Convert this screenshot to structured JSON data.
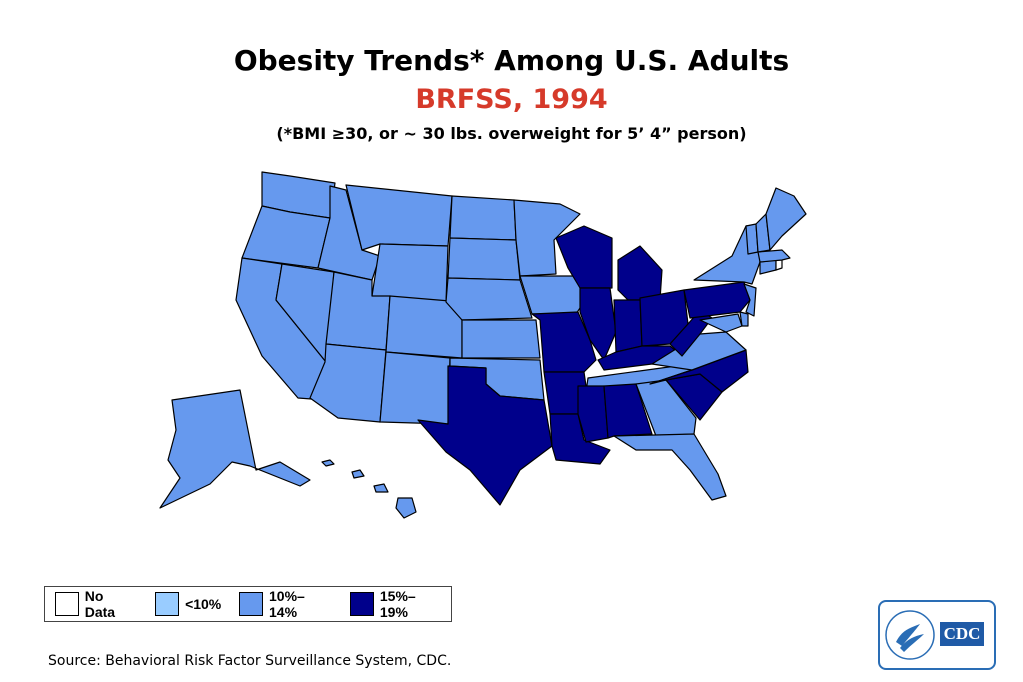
{
  "title": "Obesity Trends* Among U.S. Adults",
  "subtitle": "BRFSS, 1994",
  "note": "(*BMI ≥30, or ~ 30 lbs. overweight for 5’ 4” person)",
  "legend": [
    {
      "label": "No Data",
      "color": "#ffffff"
    },
    {
      "label": "<10%",
      "color": "#99ccff"
    },
    {
      "label": "10%–14%",
      "color": "#6699ee"
    },
    {
      "label": "15%–19%",
      "color": "#00008b"
    }
  ],
  "colors": {
    "low": "#6699ee",
    "high": "#00008b",
    "title_accent": "#d63a2a"
  },
  "states": [
    {
      "name": "Washington",
      "cat": "10%–14%"
    },
    {
      "name": "Oregon",
      "cat": "10%–14%"
    },
    {
      "name": "California",
      "cat": "10%–14%"
    },
    {
      "name": "Nevada",
      "cat": "10%–14%"
    },
    {
      "name": "Idaho",
      "cat": "10%–14%"
    },
    {
      "name": "Montana",
      "cat": "10%–14%"
    },
    {
      "name": "Wyoming",
      "cat": "10%–14%"
    },
    {
      "name": "Utah",
      "cat": "10%–14%"
    },
    {
      "name": "Arizona",
      "cat": "10%–14%"
    },
    {
      "name": "Colorado",
      "cat": "10%–14%"
    },
    {
      "name": "New Mexico",
      "cat": "10%–14%"
    },
    {
      "name": "North Dakota",
      "cat": "10%–14%"
    },
    {
      "name": "South Dakota",
      "cat": "10%–14%"
    },
    {
      "name": "Nebraska",
      "cat": "10%–14%"
    },
    {
      "name": "Kansas",
      "cat": "10%–14%"
    },
    {
      "name": "Oklahoma",
      "cat": "10%–14%"
    },
    {
      "name": "Texas",
      "cat": "15%–19%"
    },
    {
      "name": "Minnesota",
      "cat": "10%–14%"
    },
    {
      "name": "Iowa",
      "cat": "10%–14%"
    },
    {
      "name": "Missouri",
      "cat": "15%–19%"
    },
    {
      "name": "Arkansas",
      "cat": "15%–19%"
    },
    {
      "name": "Louisiana",
      "cat": "15%–19%"
    },
    {
      "name": "Wisconsin",
      "cat": "15%–19%"
    },
    {
      "name": "Illinois",
      "cat": "15%–19%"
    },
    {
      "name": "Michigan",
      "cat": "15%–19%"
    },
    {
      "name": "Indiana",
      "cat": "15%–19%"
    },
    {
      "name": "Ohio",
      "cat": "15%–19%"
    },
    {
      "name": "Kentucky",
      "cat": "15%–19%"
    },
    {
      "name": "Tennessee",
      "cat": "10%–14%"
    },
    {
      "name": "Mississippi",
      "cat": "15%–19%"
    },
    {
      "name": "Alabama",
      "cat": "15%–19%"
    },
    {
      "name": "Georgia",
      "cat": "10%–14%"
    },
    {
      "name": "Florida",
      "cat": "10%–14%"
    },
    {
      "name": "South Carolina",
      "cat": "15%–19%"
    },
    {
      "name": "North Carolina",
      "cat": "15%–19%"
    },
    {
      "name": "Virginia",
      "cat": "10%–14%"
    },
    {
      "name": "West Virginia",
      "cat": "15%–19%"
    },
    {
      "name": "Pennsylvania",
      "cat": "15%–19%"
    },
    {
      "name": "New York",
      "cat": "10%–14%"
    },
    {
      "name": "Maryland",
      "cat": "10%–14%"
    },
    {
      "name": "Delaware",
      "cat": "10%–14%"
    },
    {
      "name": "New Jersey",
      "cat": "10%–14%"
    },
    {
      "name": "Connecticut",
      "cat": "10%–14%"
    },
    {
      "name": "Rhode Island",
      "cat": "No Data"
    },
    {
      "name": "Massachusetts",
      "cat": "10%–14%"
    },
    {
      "name": "Vermont",
      "cat": "10%–14%"
    },
    {
      "name": "New Hampshire",
      "cat": "10%–14%"
    },
    {
      "name": "Maine",
      "cat": "10%–14%"
    },
    {
      "name": "Alaska",
      "cat": "10%–14%"
    },
    {
      "name": "Hawaii",
      "cat": "10%–14%"
    }
  ],
  "source": "Source: Behavioral Risk Factor Surveillance System, CDC.",
  "logo": {
    "text": "CDC"
  }
}
